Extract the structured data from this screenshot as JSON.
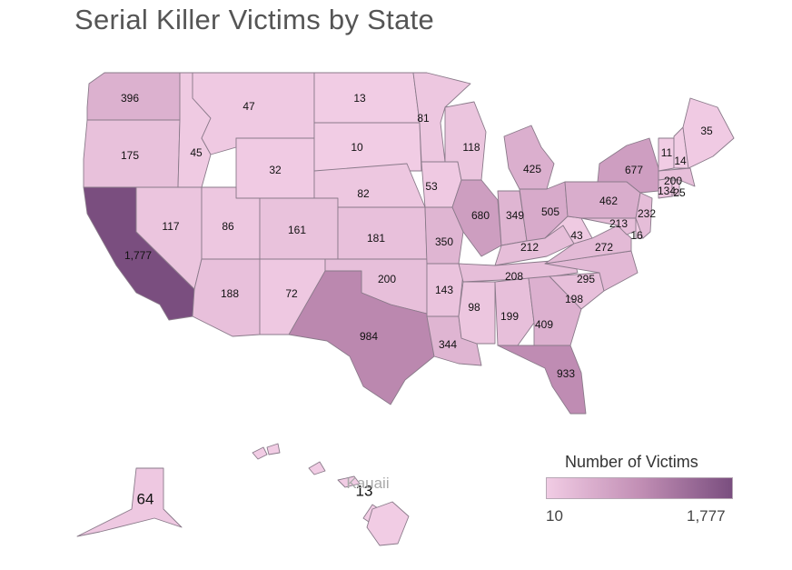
{
  "title": "Serial Killer Victims by State",
  "legend": {
    "title": "Number of Victims",
    "min_label": "10",
    "max_label": "1,777",
    "min_color": "#f1cce4",
    "mid_color": "#c28fb5",
    "max_color": "#7a4e7f"
  },
  "place_label": "Kauaii",
  "chart_data": {
    "type": "choropleth",
    "title": "Serial Killer Victims by State",
    "legend_title": "Number of Victims",
    "color_range": [
      10,
      1777
    ],
    "states": [
      {
        "abbr": "WA",
        "value": 396,
        "label": "396"
      },
      {
        "abbr": "OR",
        "value": 175,
        "label": "175"
      },
      {
        "abbr": "CA",
        "value": 1777,
        "label": "1,777"
      },
      {
        "abbr": "ID",
        "value": 45,
        "label": "45"
      },
      {
        "abbr": "NV",
        "value": 117,
        "label": "117"
      },
      {
        "abbr": "MT",
        "value": 47,
        "label": "47"
      },
      {
        "abbr": "WY",
        "value": 32,
        "label": "32"
      },
      {
        "abbr": "UT",
        "value": 86,
        "label": "86"
      },
      {
        "abbr": "AZ",
        "value": 188,
        "label": "188"
      },
      {
        "abbr": "CO",
        "value": 161,
        "label": "161"
      },
      {
        "abbr": "NM",
        "value": 72,
        "label": "72"
      },
      {
        "abbr": "ND",
        "value": 13,
        "label": "13"
      },
      {
        "abbr": "SD",
        "value": 10,
        "label": "10"
      },
      {
        "abbr": "NE",
        "value": 82,
        "label": "82"
      },
      {
        "abbr": "KS",
        "value": 181,
        "label": "181"
      },
      {
        "abbr": "OK",
        "value": 200,
        "label": "200"
      },
      {
        "abbr": "TX",
        "value": 984,
        "label": "984"
      },
      {
        "abbr": "MN",
        "value": 81,
        "label": "81"
      },
      {
        "abbr": "IA",
        "value": 53,
        "label": "53"
      },
      {
        "abbr": "MO",
        "value": 350,
        "label": "350"
      },
      {
        "abbr": "AR",
        "value": 143,
        "label": "143"
      },
      {
        "abbr": "LA",
        "value": 344,
        "label": "344"
      },
      {
        "abbr": "WI",
        "value": 118,
        "label": "118"
      },
      {
        "abbr": "IL",
        "value": 680,
        "label": "680"
      },
      {
        "abbr": "MS",
        "value": 98,
        "label": "98"
      },
      {
        "abbr": "MI",
        "value": 425,
        "label": "425"
      },
      {
        "abbr": "IN",
        "value": 349,
        "label": "349"
      },
      {
        "abbr": "KY",
        "value": 212,
        "label": "212"
      },
      {
        "abbr": "TN",
        "value": 208,
        "label": "208"
      },
      {
        "abbr": "AL",
        "value": 199,
        "label": "199"
      },
      {
        "abbr": "OH",
        "value": 505,
        "label": "505"
      },
      {
        "abbr": "WV",
        "value": 43,
        "label": "43"
      },
      {
        "abbr": "GA",
        "value": 409,
        "label": "409"
      },
      {
        "abbr": "FL",
        "value": 933,
        "label": "933"
      },
      {
        "abbr": "SC",
        "value": 198,
        "label": "198"
      },
      {
        "abbr": "NC",
        "value": 295,
        "label": "295"
      },
      {
        "abbr": "VA",
        "value": 272,
        "label": "272"
      },
      {
        "abbr": "PA",
        "value": 462,
        "label": "462"
      },
      {
        "abbr": "MD",
        "value": 213,
        "label": "213"
      },
      {
        "abbr": "DE",
        "value": 16,
        "label": "16"
      },
      {
        "abbr": "NJ",
        "value": 232,
        "label": "232"
      },
      {
        "abbr": "NY",
        "value": 677,
        "label": "677"
      },
      {
        "abbr": "CT",
        "value": 134,
        "label": "134"
      },
      {
        "abbr": "RI",
        "value": 25,
        "label": "25"
      },
      {
        "abbr": "MA",
        "value": 200,
        "label": "200"
      },
      {
        "abbr": "VT",
        "value": 11,
        "label": "11"
      },
      {
        "abbr": "NH",
        "value": 14,
        "label": "14"
      },
      {
        "abbr": "ME",
        "value": 35,
        "label": "35"
      },
      {
        "abbr": "AK",
        "value": 64,
        "label": "64"
      },
      {
        "abbr": "HI",
        "value": 13,
        "label": "13"
      }
    ]
  }
}
